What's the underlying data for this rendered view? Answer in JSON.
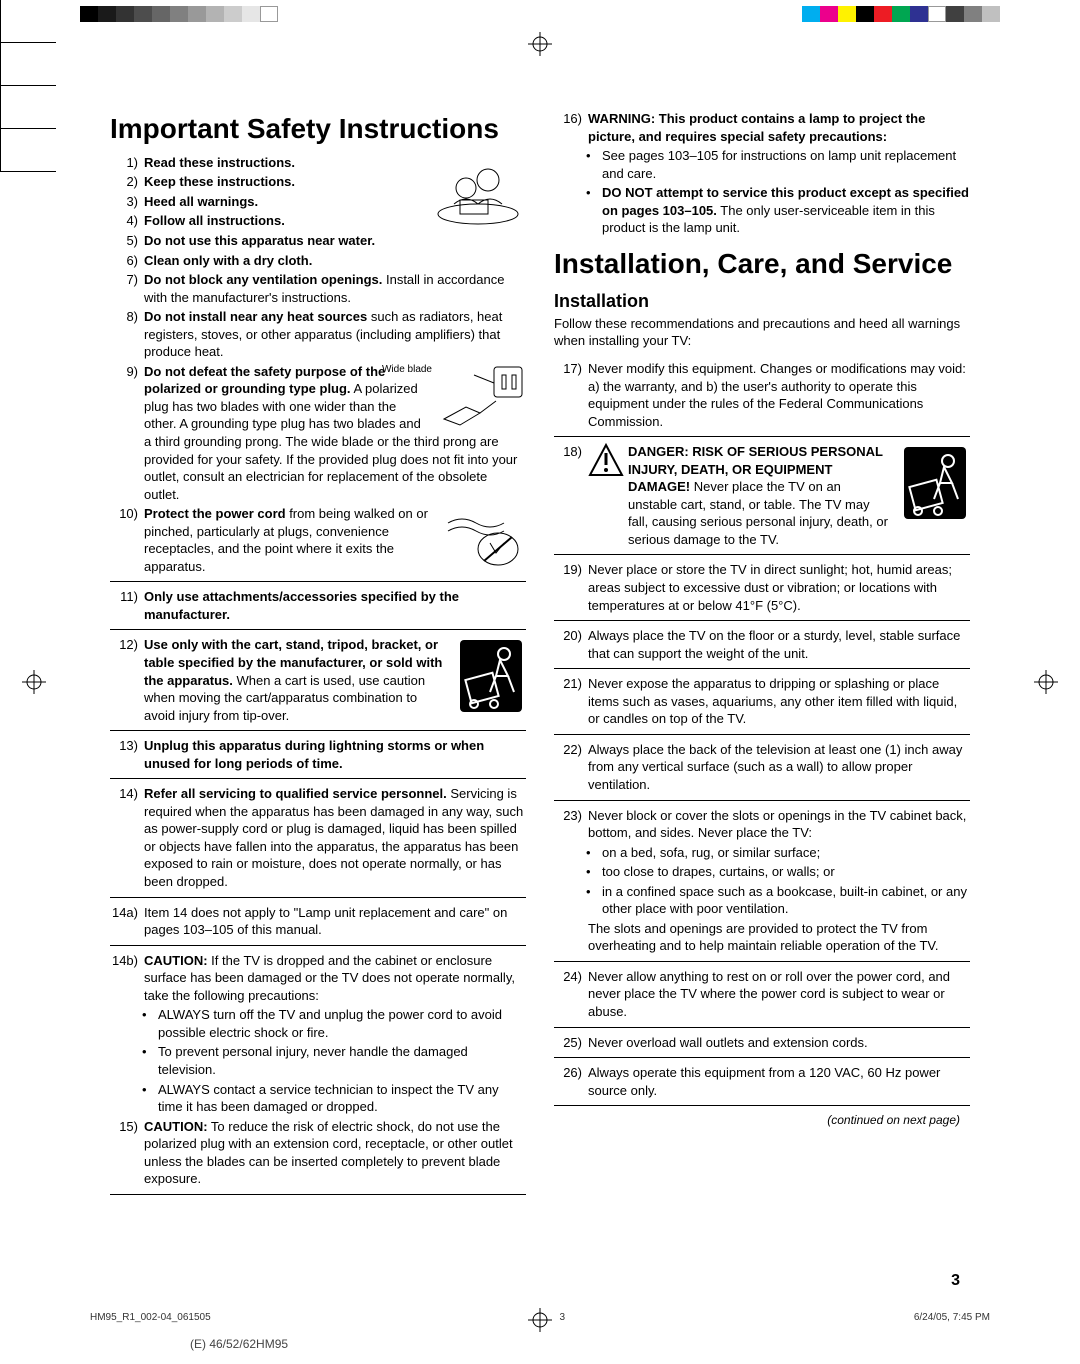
{
  "colorbars": {
    "left": [
      "#000000",
      "#1a1a1a",
      "#333333",
      "#4d4d4d",
      "#666666",
      "#808080",
      "#999999",
      "#b3b3b3",
      "#cccccc",
      "#e6e6e6",
      "#ffffff"
    ],
    "right": [
      "#00aeef",
      "#ec008c",
      "#fff200",
      "#000000",
      "#ed1c24",
      "#00a651",
      "#2e3192",
      "#ffffff",
      "#404040",
      "#808080",
      "#c0c0c0"
    ]
  },
  "left_title": "Important Safety Instructions",
  "right_title": "Installation, Care, and Service",
  "right_subtitle": "Installation",
  "right_intro": "Follow these recommendations and precautions and heed all warnings when installing your TV:",
  "left_header_items": [
    {
      "n": "1)",
      "b": "Read these instructions."
    },
    {
      "n": "2)",
      "b": "Keep these instructions."
    },
    {
      "n": "3)",
      "b": "Heed all warnings."
    },
    {
      "n": "4)",
      "b": "Follow all instructions."
    }
  ],
  "left_items": [
    {
      "n": "5)",
      "t": "<b>Do not use this apparatus near water.</b>"
    },
    {
      "n": "6)",
      "t": "<b>Clean only with a dry cloth.</b>"
    },
    {
      "n": "7)",
      "t": "<b>Do not block any ventilation openings.</b> Install in accordance with the manufacturer's instructions."
    },
    {
      "n": "8)",
      "t": "<b>Do not install near any heat sources</b> such as radiators, heat registers, stoves, or other apparatus (including amplifiers) that produce heat."
    },
    {
      "n": "9)",
      "t": "<b>Do not defeat the safety purpose of the polarized or grounding type plug.</b> A polarized plug has two blades with one wider than the other. A grounding type plug has two blades and a third grounding prong. The wide blade or the third prong are provided for your safety. If the provided plug does not fit into your outlet, consult an electrician for replacement of the obsolete outlet.",
      "svg": "plug",
      "label": "Wide blade"
    },
    {
      "n": "10)",
      "t": "<b>Protect the power cord</b> from being walked on or pinched, particularly at plugs, convenience receptacles, and the point where it exits the apparatus.",
      "svg": "cord"
    },
    {
      "n": "11)",
      "t": "<b>Only use attachments/accessories specified by the manufacturer.</b>"
    },
    {
      "n": "12)",
      "t": "<b>Use only with the cart, stand, tripod, bracket, or table specified by the manufacturer, or sold with the apparatus.</b> When a cart is used, use caution when moving the cart/apparatus combination to avoid injury from tip-over.",
      "svg": "cart"
    },
    {
      "n": "13)",
      "t": "<b>Unplug this apparatus during lightning storms or when unused for long periods of time.</b>"
    },
    {
      "n": "14)",
      "t": "<b>Refer all servicing to qualified service personnel.</b> Servicing is required when the apparatus has been damaged in any way, such as power-supply cord or plug is damaged, liquid has been spilled or objects have fallen into the apparatus, the apparatus has been exposed to rain or moisture, does not operate normally, or has been dropped."
    },
    {
      "n": "14a)",
      "t": "Item 14 does not apply to \"Lamp unit replacement and care\" on pages 103–105 of this manual."
    },
    {
      "n": "14b)",
      "t": "<b>CAUTION:</b> If the TV is dropped and the cabinet or enclosure surface has been damaged or the TV does not operate normally, take the following precautions:",
      "subs": [
        "ALWAYS turn off the TV and unplug the power cord to avoid possible electric shock or fire.",
        "To prevent personal injury, never handle the damaged television.",
        "ALWAYS contact a service technician to inspect the TV any time it has been damaged or dropped."
      ]
    },
    {
      "n": "15)",
      "t": "<b>CAUTION:</b> To reduce the risk of electric shock, do not use the polarized plug with an extension cord, receptacle, or other outlet unless the blades can be inserted completely to prevent blade exposure."
    }
  ],
  "right_top_item": {
    "n": "16)",
    "t": "<b>WARNING: This product contains a lamp to project the picture, and requires special safety precautions:</b>",
    "subs": [
      "See pages 103–105 for instructions on lamp unit replacement and care.",
      "<b>DO NOT attempt to service this product except as specified on pages 103–105.</b> The only user-serviceable item in this product is the lamp unit."
    ]
  },
  "right_items": [
    {
      "n": "17)",
      "t": "Never modify this equipment. Changes or modifications may void: a) the warranty, and b) the user's authority to operate this equipment under the rules of the Federal Communications Commission."
    },
    {
      "n": "18)",
      "danger": true,
      "t": "<b>DANGER: RISK OF SERIOUS PERSONAL INJURY, DEATH, OR EQUIPMENT DAMAGE!</b> Never place the TV on an unstable cart, stand, or table. The TV may fall, causing serious personal injury, death, or serious damage to the TV."
    },
    {
      "n": "19)",
      "t": "Never place or store the TV in direct sunlight; hot, humid areas; areas subject to excessive dust or vibration; or locations with temperatures at or below 41°F (5°C)."
    },
    {
      "n": "20)",
      "t": "Always place the TV on the floor or a sturdy, level, stable surface that can support the weight of the unit."
    },
    {
      "n": "21)",
      "t": "Never expose the apparatus to dripping or splashing or place items such as vases, aquariums, any other item filled with liquid, or candles on top of the TV."
    },
    {
      "n": "22)",
      "t": "Always place the back of the television at least one (1) inch away from any vertical surface (such as a wall) to allow proper ventilation."
    },
    {
      "n": "23)",
      "t": "Never block or cover the slots or openings in the TV cabinet back, bottom, and sides. Never place the TV:",
      "subs": [
        "on a bed, sofa, rug, or similar surface;",
        "too close to drapes, curtains, or walls; or",
        "in a confined space such as a bookcase, built-in cabinet, or any other place with poor ventilation."
      ],
      "tail": "The slots and openings are provided to protect the TV from overheating and to help maintain reliable operation of the TV."
    },
    {
      "n": "24)",
      "t": "Never allow anything to rest on or roll over the power cord, and never place the TV where the power cord is subject to wear or abuse."
    },
    {
      "n": "25)",
      "t": "Never overload wall outlets and extension cords."
    },
    {
      "n": "26)",
      "t": "Always operate this equipment from a 120 VAC, 60 Hz power source only."
    }
  ],
  "continued": "(continued on next page)",
  "page_number": "3",
  "footer_left": "HM95_R1_002-04_061505",
  "footer_mid": "3",
  "footer_right": "6/24/05, 7:45 PM",
  "page_foot": "(E) 46/52/62HM95"
}
